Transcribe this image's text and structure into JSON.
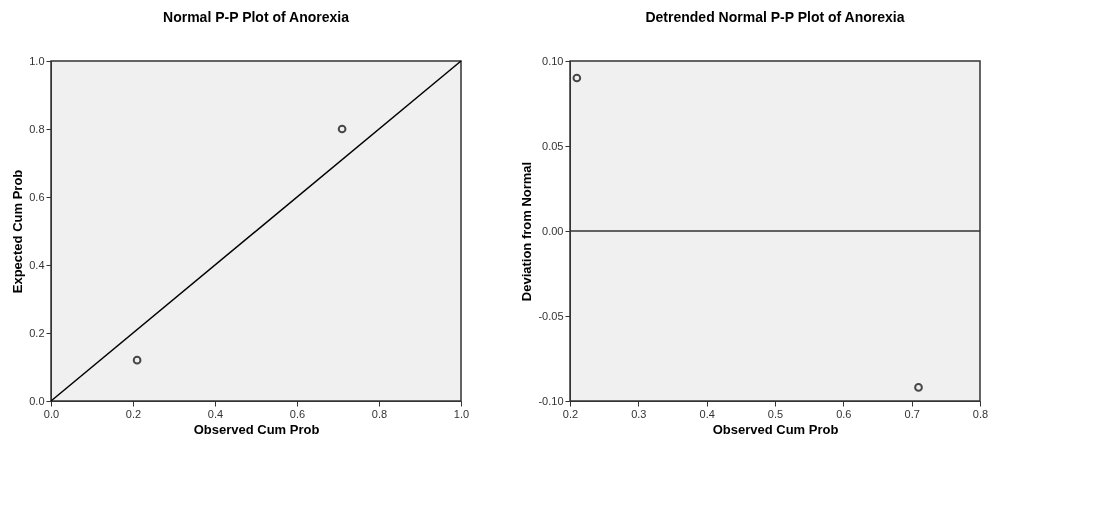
{
  "chart_data": [
    {
      "type": "scatter",
      "title": "Normal P-P Plot of Anorexia",
      "xlabel": "Observed Cum Prob",
      "ylabel": "Expected Cum Prob",
      "xlim": [
        0,
        1
      ],
      "ylim": [
        0,
        1
      ],
      "xticks": [
        {
          "value": 0,
          "label": "0.0"
        },
        0.2,
        0.4,
        0.6,
        0.8,
        {
          "value": 1,
          "label": "1.0"
        }
      ],
      "yticks": [
        {
          "value": 0,
          "label": "0.0"
        },
        0.2,
        0.4,
        0.6,
        0.8,
        {
          "value": 1,
          "label": "1.0"
        }
      ],
      "grid": false,
      "series": [
        {
          "type": "scatter",
          "marker": "circle",
          "color": "#000000",
          "x": [
            0.21,
            0.71
          ],
          "values": [
            0.12,
            0.8
          ]
        },
        {
          "type": "line",
          "marker": "none",
          "color": "#000000",
          "x": [
            0,
            1
          ],
          "values": [
            0,
            1
          ]
        }
      ]
    },
    {
      "type": "scatter",
      "title": "Detrended Normal P-P Plot of Anorexia",
      "xlabel": "Observed Cum Prob",
      "ylabel": "Deviation from Normal",
      "xlim": [
        0.2,
        0.8
      ],
      "ylim": [
        -0.1,
        0.1
      ],
      "xticks": [
        0.2,
        0.3,
        0.4,
        0.5,
        0.6,
        0.7,
        0.8
      ],
      "yticks": [
        {
          "value": -0.1,
          "label": "-0.10"
        },
        {
          "value": -0.05,
          "label": "-0.05"
        },
        {
          "value": 0,
          "label": "0.00"
        },
        0.05,
        {
          "value": 0.1,
          "label": "0.10"
        }
      ],
      "grid": false,
      "marker": "circle",
      "ref_lines": [
        {
          "axis": "y",
          "value": 0,
          "color": "#333333"
        }
      ],
      "series": [
        {
          "type": "scatter",
          "color": "#000000",
          "x": [
            0.21,
            0.71
          ],
          "values": [
            0.09,
            -0.092
          ]
        }
      ]
    }
  ]
}
